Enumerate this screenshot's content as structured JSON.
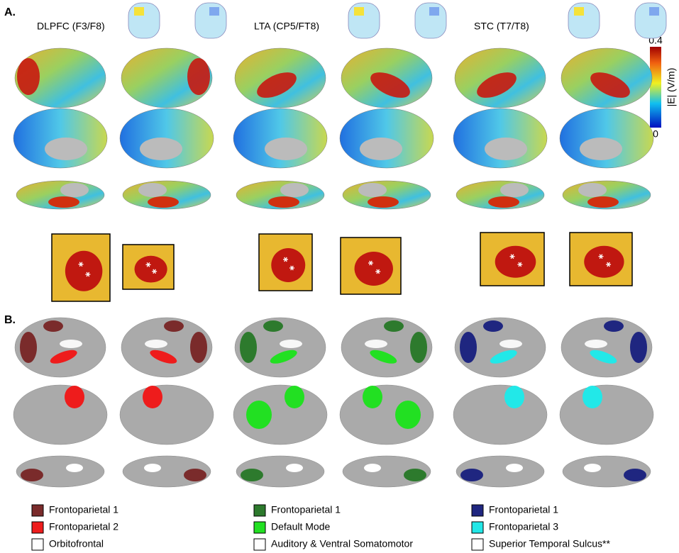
{
  "panel_a": {
    "label": "A.",
    "columns": [
      {
        "title": "DLPFC (F3/F8)"
      },
      {
        "title": "LTA (CP5/FT8)"
      },
      {
        "title": "STC (T7/T8)"
      }
    ],
    "colorbar": {
      "title": "|E| (V/m)",
      "max": 0.4,
      "min": 0
    }
  },
  "panel_b": {
    "label": "B.",
    "legends": [
      [
        {
          "label": "Frontoparietal 1",
          "color": "#7a2b2b"
        },
        {
          "label": "Frontoparietal 2",
          "color": "#ee1c1c"
        },
        {
          "label": "Orbitofrontal",
          "color": "#ffffff"
        }
      ],
      [
        {
          "label": "Frontoparietal 1",
          "color": "#2d7a2d"
        },
        {
          "label": "Default Mode",
          "color": "#22e022"
        },
        {
          "label": "Auditory & Ventral Somatomotor",
          "color": "#ffffff"
        }
      ],
      [
        {
          "label": "Frontoparietal 1",
          "color": "#1f2680"
        },
        {
          "label": "Frontoparietal 3",
          "color": "#22e8e8"
        },
        {
          "label": "Superior Temporal Sulcus**",
          "color": "#ffffff"
        }
      ]
    ]
  }
}
